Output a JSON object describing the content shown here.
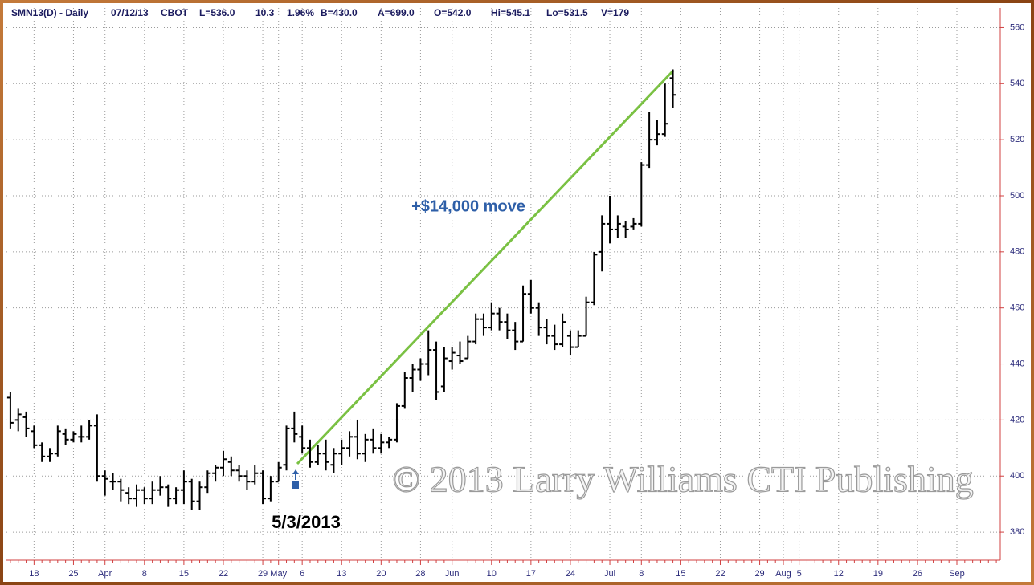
{
  "chart_data": {
    "type": "ohlc",
    "header": [
      "SMN13(D) - Daily",
      "07/12/13",
      "CBOT",
      "L=536.0",
      "10.3",
      "1.96%",
      "B=430.0",
      "A=699.0",
      "O=542.0",
      "Hi=545.1",
      "Lo=531.5",
      "V=179"
    ],
    "annotations": [
      "+$14,000 move",
      "5/3/2013"
    ],
    "watermark": "© 2013 Larry Williams CTI Publishing",
    "color": "#000000",
    "grid": true,
    "ylim": [
      370,
      567
    ],
    "yticks": [
      380,
      400,
      420,
      440,
      460,
      480,
      500,
      520,
      540,
      560
    ],
    "categories": [
      null,
      null,
      null,
      "18",
      null,
      null,
      null,
      null,
      "25",
      null,
      null,
      null,
      "Apr",
      null,
      null,
      null,
      null,
      "8",
      null,
      null,
      null,
      null,
      "15",
      null,
      null,
      null,
      null,
      "22",
      null,
      null,
      null,
      null,
      "29",
      null,
      "May",
      null,
      null,
      "6",
      null,
      null,
      null,
      null,
      "13",
      null,
      null,
      null,
      null,
      "20",
      null,
      null,
      null,
      null,
      "28",
      null,
      null,
      null,
      "Jun",
      null,
      null,
      null,
      null,
      "10",
      null,
      null,
      null,
      null,
      "17",
      null,
      null,
      null,
      null,
      "24",
      null,
      null,
      null,
      null,
      "Jul",
      null,
      null,
      null,
      "8",
      null,
      null,
      null,
      null,
      "15",
      null,
      null,
      null,
      null,
      "22",
      null,
      null,
      null,
      null,
      "29",
      null,
      null,
      "Aug",
      null,
      "5",
      null,
      null,
      null,
      null,
      "12",
      null,
      null,
      null,
      null,
      "19",
      null,
      null,
      null,
      null,
      "26",
      null,
      null,
      null,
      null,
      "Sep",
      null,
      null,
      null,
      null,
      null
    ],
    "open": [
      428,
      420,
      421,
      416,
      411,
      407,
      408,
      415,
      413,
      414,
      414,
      418,
      400,
      398,
      398,
      394,
      392,
      395,
      392,
      395,
      396,
      392,
      395,
      398,
      391,
      396,
      401,
      403,
      405,
      402,
      400,
      398,
      401,
      392,
      398,
      404,
      417,
      414,
      410,
      405,
      408,
      404,
      408,
      410,
      414,
      408,
      413,
      410,
      412,
      413,
      425,
      435,
      438,
      440,
      445,
      432,
      441,
      443,
      442,
      448,
      456,
      453,
      458,
      455,
      452,
      448,
      465,
      460,
      453,
      450,
      447,
      450,
      446,
      450,
      462,
      480,
      490,
      488,
      489,
      489,
      490,
      511,
      520,
      522,
      542,
      null,
      null,
      null,
      null,
      null,
      null,
      null,
      null,
      null,
      null,
      null,
      null,
      null,
      null,
      null,
      null,
      null,
      null,
      null,
      null,
      null,
      null,
      null,
      null,
      null,
      null,
      null,
      null,
      null,
      null,
      null,
      null,
      null,
      null,
      null,
      null,
      null,
      null,
      null,
      null,
      null
    ],
    "high": [
      430,
      424,
      423,
      418,
      412,
      410,
      418,
      417,
      416,
      418,
      420,
      422,
      402,
      401,
      399,
      396,
      397,
      396,
      398,
      400,
      397,
      396,
      402,
      399,
      398,
      402,
      404,
      409,
      407,
      404,
      402,
      404,
      402,
      400,
      405,
      418,
      423,
      418,
      413,
      411,
      413,
      410,
      413,
      416,
      420,
      415,
      417,
      415,
      414,
      426,
      437,
      440,
      442,
      452,
      448,
      446,
      446,
      448,
      450,
      458,
      458,
      462,
      460,
      458,
      455,
      468,
      470,
      462,
      456,
      454,
      458,
      452,
      452,
      464,
      480,
      493,
      500,
      493,
      491,
      492,
      512,
      530,
      527,
      540,
      545.1,
      null,
      null,
      null,
      null,
      null,
      null,
      null,
      null,
      null,
      null,
      null,
      null,
      null,
      null,
      null,
      null,
      null,
      null,
      null,
      null,
      null,
      null,
      null,
      null,
      null,
      null,
      null,
      null,
      null,
      null,
      null,
      null,
      null,
      null,
      null,
      null,
      null,
      null,
      null,
      null,
      null
    ],
    "low": [
      417,
      416,
      414,
      410,
      405,
      405,
      407,
      411,
      412,
      412,
      413,
      398,
      393,
      395,
      391,
      390,
      389,
      390,
      390,
      393,
      389,
      390,
      390,
      388,
      388,
      394,
      398,
      400,
      400,
      398,
      395,
      397,
      390,
      391,
      398,
      402,
      412,
      408,
      403,
      404,
      402,
      401,
      404,
      407,
      406,
      405,
      408,
      408,
      410,
      412,
      424,
      430,
      434,
      436,
      427,
      430,
      438,
      440,
      442,
      447,
      450,
      452,
      452,
      449,
      445,
      448,
      458,
      450,
      447,
      445,
      446,
      443,
      446,
      450,
      461,
      473,
      483,
      485,
      485,
      488,
      489,
      510,
      518,
      521,
      531.5,
      null,
      null,
      null,
      null,
      null,
      null,
      null,
      null,
      null,
      null,
      null,
      null,
      null,
      null,
      null,
      null,
      null,
      null,
      null,
      null,
      null,
      null,
      null,
      null,
      null,
      null,
      null,
      null,
      null,
      null,
      null,
      null,
      null,
      null,
      null,
      null,
      null,
      null,
      null,
      null,
      null
    ],
    "close": [
      419,
      422,
      417,
      411,
      407,
      408,
      416,
      413,
      415,
      414,
      418,
      400,
      399,
      398,
      395,
      392,
      395,
      392,
      395,
      396,
      392,
      395,
      398,
      391,
      396,
      401,
      403,
      406,
      402,
      400,
      398,
      401,
      392,
      398,
      403,
      417,
      415,
      410,
      405,
      408,
      405,
      408,
      410,
      414,
      408,
      413,
      410,
      412,
      413,
      425,
      435,
      438,
      440,
      445,
      430,
      442,
      444,
      441,
      448,
      456,
      453,
      458,
      455,
      452,
      448,
      465,
      460,
      453,
      450,
      447,
      455,
      446,
      450,
      462,
      479,
      490,
      488,
      490,
      488,
      490,
      511,
      520,
      522,
      525.7,
      536,
      null,
      null,
      null,
      null,
      null,
      null,
      null,
      null,
      null,
      null,
      null,
      null,
      null,
      null,
      null,
      null,
      null,
      null,
      null,
      null,
      null,
      null,
      null,
      null,
      null,
      null,
      null,
      null,
      null,
      null,
      null,
      null,
      null,
      null,
      null,
      null,
      null,
      null,
      null,
      null,
      null
    ]
  }
}
